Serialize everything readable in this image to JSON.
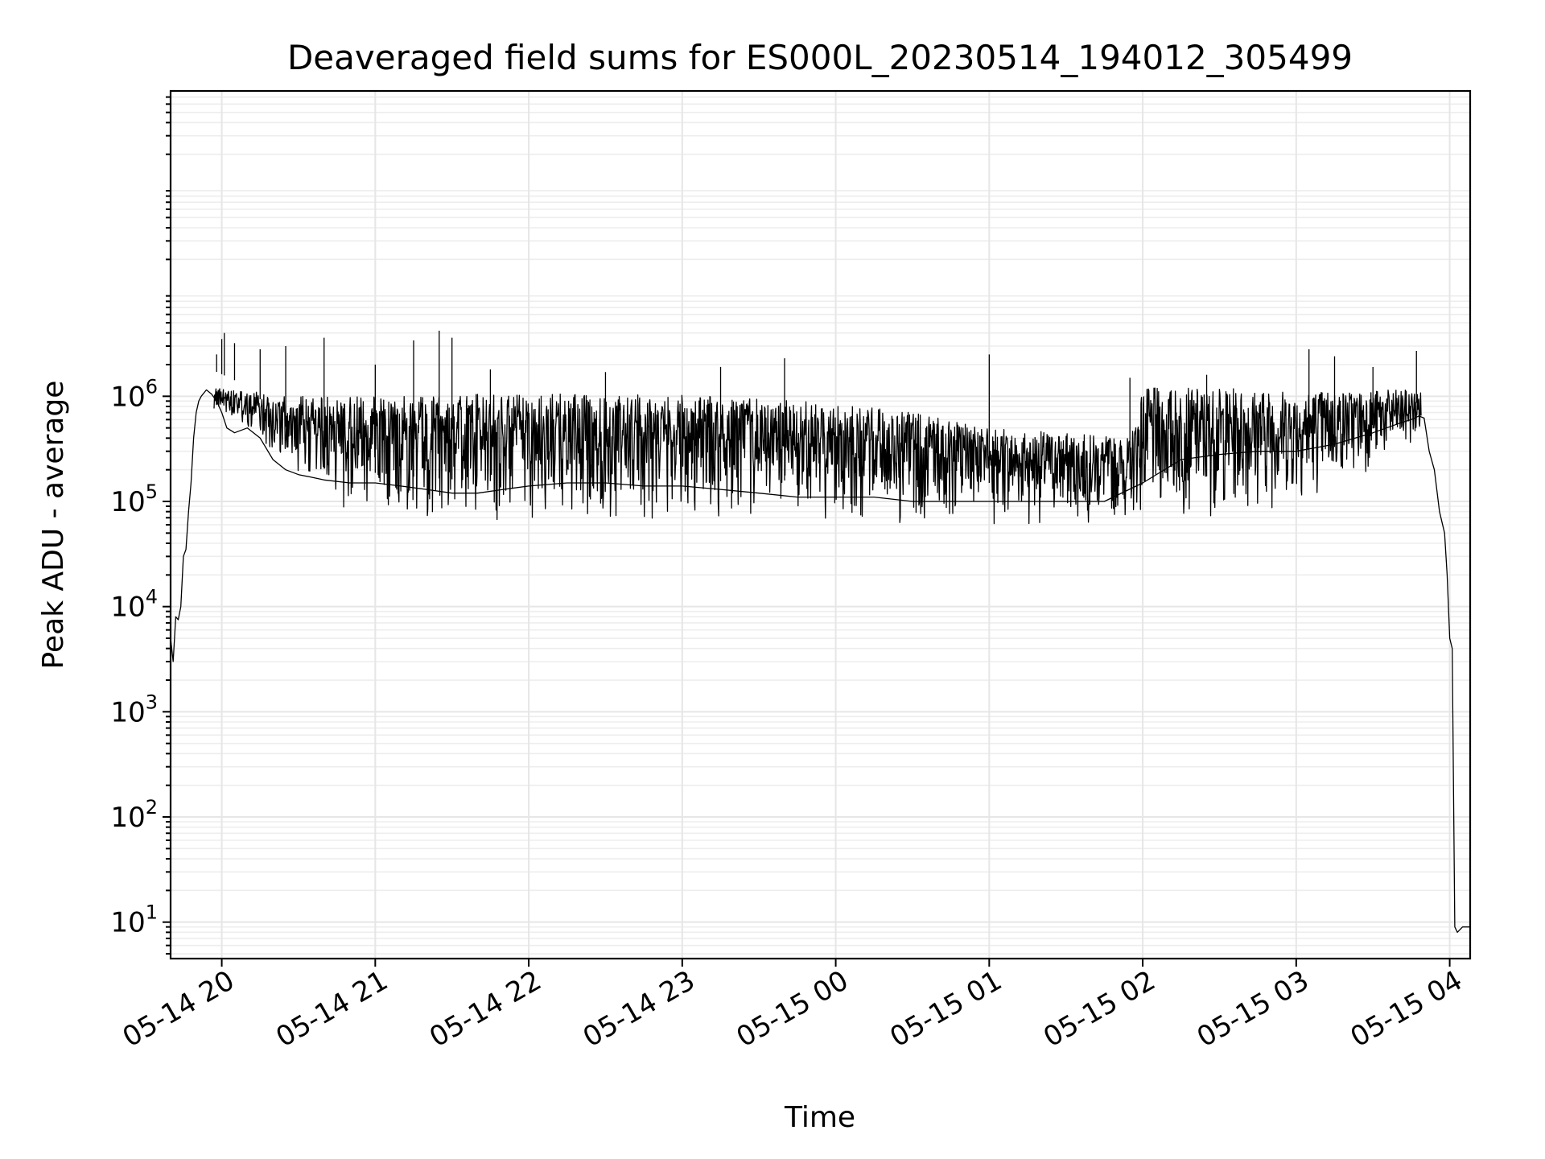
{
  "chart_data": {
    "type": "line",
    "title": "Deaveraged field sums for ES000L_20230514_194012_305499",
    "xlabel": "Time",
    "ylabel": "Peak ADU - average",
    "yscale": "log",
    "ylim": [
      4.5,
      800000000
    ],
    "xlim": [
      "2023-05-14 19:40",
      "2023-05-15 04:08"
    ],
    "x_ticks": [
      {
        "value": "2023-05-14 20:00",
        "label": "05-14 20"
      },
      {
        "value": "2023-05-14 21:00",
        "label": "05-14 21"
      },
      {
        "value": "2023-05-14 22:00",
        "label": "05-14 22"
      },
      {
        "value": "2023-05-14 23:00",
        "label": "05-14 23"
      },
      {
        "value": "2023-05-15 00:00",
        "label": "05-15 00"
      },
      {
        "value": "2023-05-15 01:00",
        "label": "05-15 01"
      },
      {
        "value": "2023-05-15 02:00",
        "label": "05-15 02"
      },
      {
        "value": "2023-05-15 03:00",
        "label": "05-15 03"
      },
      {
        "value": "2023-05-15 04:00",
        "label": "05-15 04"
      }
    ],
    "y_ticks": [
      {
        "value": 10,
        "base": "10",
        "exp": "1"
      },
      {
        "value": 100,
        "base": "10",
        "exp": "2"
      },
      {
        "value": 1000,
        "base": "10",
        "exp": "3"
      },
      {
        "value": 10000,
        "base": "10",
        "exp": "4"
      },
      {
        "value": 100000,
        "base": "10",
        "exp": "5"
      },
      {
        "value": 1000000,
        "base": "10",
        "exp": "6"
      }
    ],
    "grid": true,
    "line_color": "#000000",
    "series": [
      {
        "x": [
          "2023-05-14 19:40",
          "2023-05-14 19:41",
          "2023-05-14 19:42",
          "2023-05-14 19:43",
          "2023-05-14 19:44",
          "2023-05-14 19:45",
          "2023-05-14 19:46",
          "2023-05-14 19:47",
          "2023-05-14 19:48",
          "2023-05-14 19:49",
          "2023-05-14 19:50",
          "2023-05-14 19:51",
          "2023-05-14 19:52",
          "2023-05-14 19:54",
          "2023-05-14 19:56",
          "2023-05-14 19:58",
          "2023-05-14 20:00",
          "2023-05-14 20:02",
          "2023-05-14 20:05",
          "2023-05-14 20:10",
          "2023-05-14 20:15",
          "2023-05-14 20:20",
          "2023-05-14 20:25",
          "2023-05-14 20:30",
          "2023-05-14 20:35",
          "2023-05-14 20:40",
          "2023-05-14 20:50",
          "2023-05-14 21:00",
          "2023-05-14 21:10",
          "2023-05-14 21:20",
          "2023-05-14 21:30",
          "2023-05-14 21:40",
          "2023-05-14 21:50",
          "2023-05-14 22:00",
          "2023-05-14 22:15",
          "2023-05-14 22:30",
          "2023-05-14 22:45",
          "2023-05-14 23:00",
          "2023-05-14 23:15",
          "2023-05-14 23:30",
          "2023-05-14 23:45",
          "2023-05-15 00:00",
          "2023-05-15 00:15",
          "2023-05-15 00:30",
          "2023-05-15 00:45",
          "2023-05-15 01:00",
          "2023-05-15 01:15",
          "2023-05-15 01:30",
          "2023-05-15 01:45",
          "2023-05-15 02:00",
          "2023-05-15 02:15",
          "2023-05-15 02:30",
          "2023-05-15 02:45",
          "2023-05-15 03:00",
          "2023-05-15 03:15",
          "2023-05-15 03:30",
          "2023-05-15 03:40",
          "2023-05-15 03:45",
          "2023-05-15 03:48",
          "2023-05-15 03:50",
          "2023-05-15 03:52",
          "2023-05-15 03:54",
          "2023-05-15 03:56",
          "2023-05-15 03:58",
          "2023-05-15 03:59",
          "2023-05-15 04:00",
          "2023-05-15 04:01",
          "2023-05-15 04:02",
          "2023-05-15 04:03",
          "2023-05-15 04:05",
          "2023-05-15 04:08"
        ],
        "y": [
          5000,
          3000,
          8000,
          7500,
          10000,
          30000,
          35000,
          80000,
          150000,
          400000,
          700000,
          900000,
          1000000,
          1150000,
          1050000,
          900000,
          700000,
          500000,
          450000,
          500000,
          400000,
          250000,
          200000,
          180000,
          170000,
          160000,
          150000,
          150000,
          140000,
          130000,
          120000,
          120000,
          130000,
          140000,
          150000,
          150000,
          140000,
          140000,
          130000,
          120000,
          110000,
          110000,
          110000,
          100000,
          100000,
          100000,
          100000,
          100000,
          100000,
          150000,
          250000,
          280000,
          300000,
          300000,
          350000,
          450000,
          550000,
          600000,
          650000,
          620000,
          300000,
          200000,
          80000,
          50000,
          20000,
          5000,
          4000,
          9,
          8,
          9,
          9
        ]
      }
    ],
    "band": {
      "x": [
        "2023-05-14 19:57",
        "2023-05-14 20:10",
        "2023-05-14 20:20",
        "2023-05-14 20:30",
        "2023-05-14 20:50",
        "2023-05-14 21:10",
        "2023-05-14 21:30",
        "2023-05-14 22:00",
        "2023-05-14 22:30",
        "2023-05-14 23:00",
        "2023-05-14 23:30",
        "2023-05-15 00:00",
        "2023-05-15 00:30",
        "2023-05-15 01:00",
        "2023-05-15 01:30",
        "2023-05-15 01:55",
        "2023-05-15 02:00",
        "2023-05-15 02:30",
        "2023-05-15 03:00",
        "2023-05-15 03:20",
        "2023-05-15 03:45",
        "2023-05-15 03:49"
      ],
      "high": [
        1200000,
        1150000,
        1000000,
        1000000,
        1000000,
        1000000,
        1050000,
        1050000,
        1050000,
        1050000,
        950000,
        850000,
        700000,
        500000,
        450000,
        400000,
        1200000,
        1200000,
        1150000,
        1150000,
        1150000,
        1100000
      ],
      "low": [
        700000,
        500000,
        280000,
        150000,
        80000,
        70000,
        65000,
        60000,
        60000,
        60000,
        65000,
        60000,
        60000,
        60000,
        60000,
        65000,
        65000,
        70000,
        90000,
        150000,
        300000,
        400000
      ]
    },
    "spikes": [
      {
        "x": "2023-05-14 19:58",
        "y": 2500000
      },
      {
        "x": "2023-05-14 20:00",
        "y": 3500000
      },
      {
        "x": "2023-05-14 20:01",
        "y": 4000000
      },
      {
        "x": "2023-05-14 20:05",
        "y": 3200000
      },
      {
        "x": "2023-05-14 20:15",
        "y": 2800000
      },
      {
        "x": "2023-05-14 20:25",
        "y": 3000000
      },
      {
        "x": "2023-05-14 20:40",
        "y": 3600000
      },
      {
        "x": "2023-05-14 21:00",
        "y": 2000000
      },
      {
        "x": "2023-05-14 21:15",
        "y": 3400000
      },
      {
        "x": "2023-05-14 21:25",
        "y": 4200000
      },
      {
        "x": "2023-05-14 21:30",
        "y": 3600000
      },
      {
        "x": "2023-05-14 21:45",
        "y": 1800000
      },
      {
        "x": "2023-05-14 22:30",
        "y": 1700000
      },
      {
        "x": "2023-05-14 23:15",
        "y": 1900000
      },
      {
        "x": "2023-05-14 23:40",
        "y": 2300000
      },
      {
        "x": "2023-05-15 01:00",
        "y": 2500000
      },
      {
        "x": "2023-05-15 01:55",
        "y": 1500000
      },
      {
        "x": "2023-05-15 02:25",
        "y": 1600000
      },
      {
        "x": "2023-05-15 03:05",
        "y": 2800000
      },
      {
        "x": "2023-05-15 03:15",
        "y": 2400000
      },
      {
        "x": "2023-05-15 03:30",
        "y": 1900000
      },
      {
        "x": "2023-05-15 03:47",
        "y": 2700000
      }
    ]
  }
}
